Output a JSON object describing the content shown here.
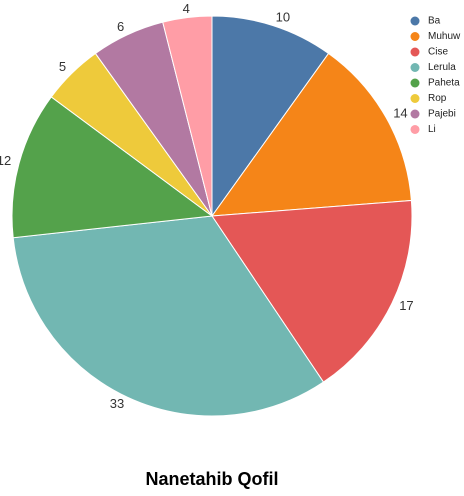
{
  "chart_data": {
    "type": "pie",
    "title": "Nanetahib Qofil",
    "categories": [
      "Ba",
      "Muhuw",
      "Cise",
      "Lerula",
      "Paheta",
      "Rop",
      "Pajebi",
      "Li"
    ],
    "values": [
      10,
      14,
      17,
      33,
      12,
      5,
      6,
      4
    ],
    "colors": [
      "#4c78a8",
      "#f58518",
      "#e45756",
      "#72b7b2",
      "#54a24b",
      "#eeca3b",
      "#b279a2",
      "#ff9da6"
    ],
    "start_angle": "12 o'clock",
    "direction": "clockwise",
    "legend_position": "top-right"
  }
}
